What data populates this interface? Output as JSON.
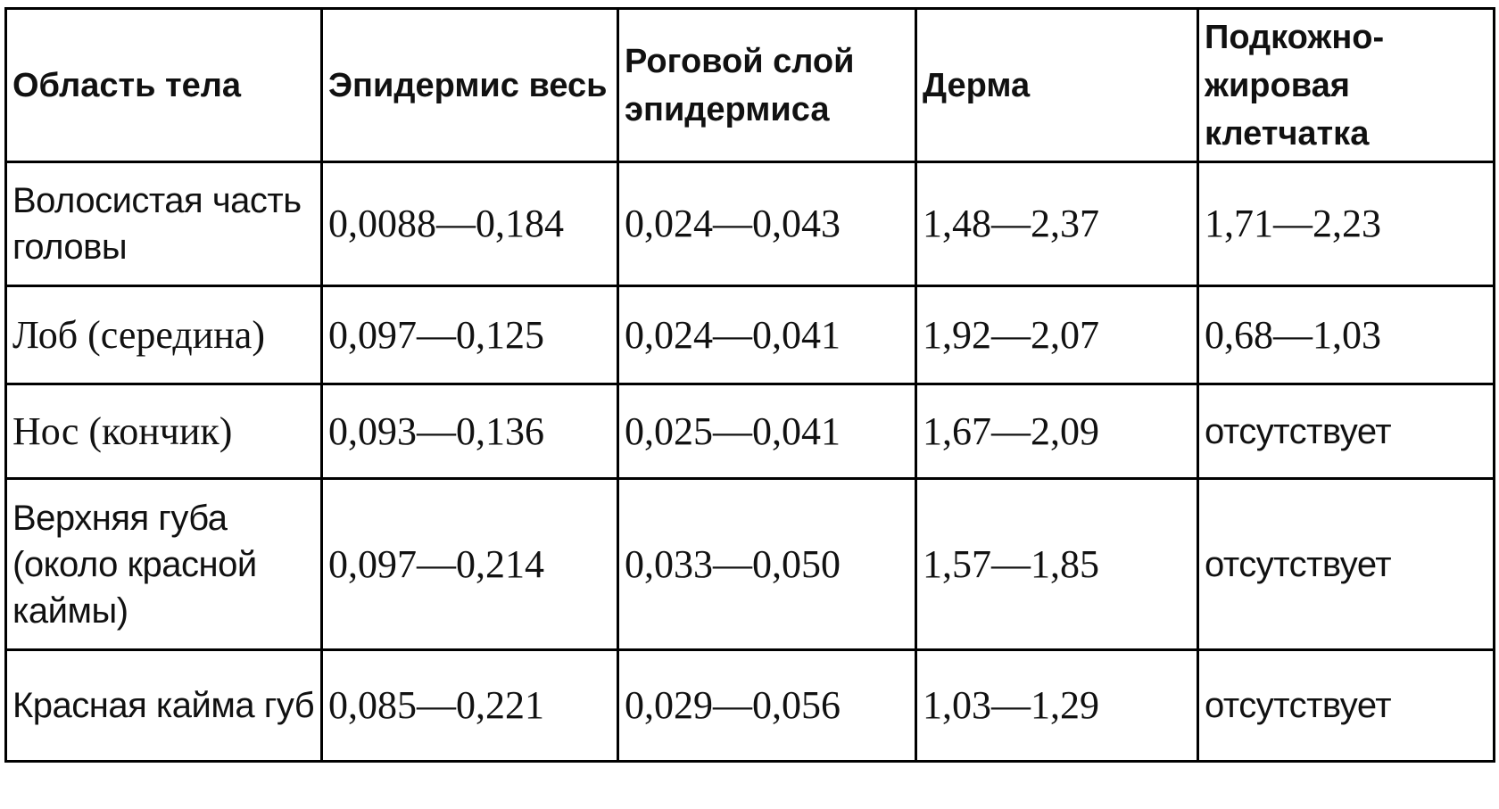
{
  "table": {
    "header": [
      "Область тела",
      "Эпидермис весь",
      "Роговой слой эпидермиса",
      "Дерма",
      "Подкожно-жировая клетчатка"
    ],
    "rows": [
      [
        "Волосистая часть головы",
        "0,0088—0,184",
        "0,024—0,043",
        "1,48—2,37",
        "1,71—2,23"
      ],
      [
        "Лоб (середина)",
        "0,097—0,125",
        "0,024—0,041",
        "1,92—2,07",
        "0,68—1,03"
      ],
      [
        "Нос (кончик)",
        "0,093—0,136",
        "0,025—0,041",
        "1,67—2,09",
        "отсутствует"
      ],
      [
        "Верхняя губа (около красной каймы)",
        "0,097—0,214",
        "0,033—0,050",
        "1,57—1,85",
        "отсутствует"
      ],
      [
        "Красная кайма губ",
        "0,085—0,221",
        "0,029—0,056",
        "1,03—1,29",
        "отсутствует"
      ]
    ]
  }
}
